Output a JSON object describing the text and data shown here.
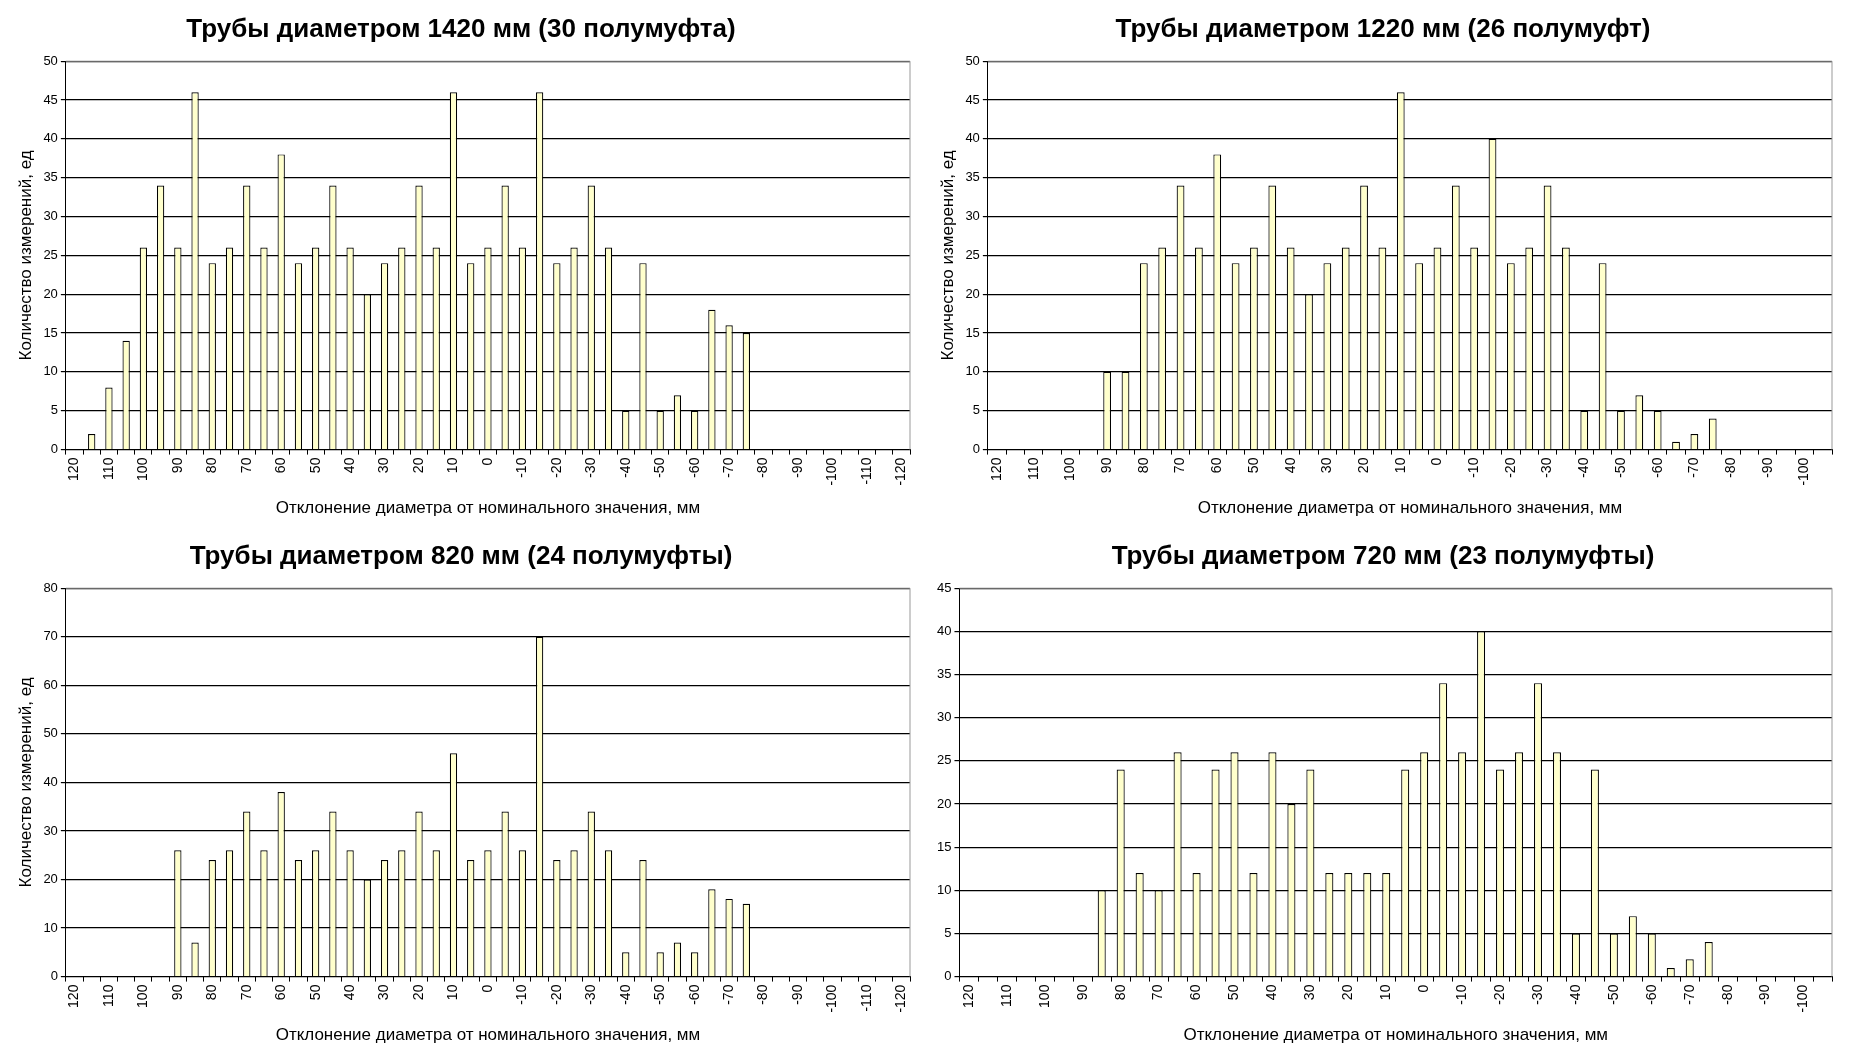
{
  "chart_data": [
    {
      "type": "bar",
      "title": "Трубы диаметром 1420 мм (30 полумуфта)",
      "xlabel": "Отклонение диаметра от номинального значения, мм",
      "ylabel": "Количество измерений, ед",
      "categories": [
        "120",
        null,
        "110",
        null,
        "100",
        null,
        "90",
        null,
        "80",
        null,
        "70",
        null,
        "60",
        null,
        "50",
        null,
        "40",
        null,
        "30",
        null,
        "20",
        null,
        "10",
        null,
        "0",
        null,
        "-10",
        null,
        "-20",
        null,
        "-30",
        null,
        "-40",
        null,
        "-50",
        null,
        "-60",
        null,
        "-70",
        null,
        "-80",
        null,
        "-90",
        null,
        "-100",
        null,
        "-110",
        null,
        "-120"
      ],
      "values": [
        0,
        2,
        8,
        14,
        26,
        34,
        26,
        46,
        24,
        26,
        34,
        26,
        38,
        24,
        26,
        34,
        26,
        20,
        24,
        26,
        34,
        26,
        46,
        24,
        26,
        34,
        26,
        46,
        24,
        26,
        34,
        26,
        5,
        24,
        5,
        7,
        5,
        18,
        16,
        15,
        0,
        0,
        0,
        0,
        0,
        0,
        0,
        0,
        0
      ],
      "color": "#ffffcc",
      "ylim": [
        0,
        50
      ],
      "yticks": [
        0,
        5,
        10,
        15,
        20,
        25,
        30,
        35,
        40,
        45,
        50
      ],
      "grid": "y",
      "legend": false
    },
    {
      "type": "bar",
      "title": "Трубы диаметром 1220 мм (26 полумуфт)",
      "xlabel": "Отклонение диаметра от номинального значения, мм",
      "ylabel": "Количество измерений, ед",
      "categories": [
        "120",
        null,
        "110",
        null,
        "100",
        null,
        "90",
        null,
        "80",
        null,
        "70",
        null,
        "60",
        null,
        "50",
        null,
        "40",
        null,
        "30",
        null,
        "20",
        null,
        "10",
        null,
        "0",
        null,
        "-10",
        null,
        "-20",
        null,
        "-30",
        null,
        "-40",
        null,
        "-50",
        null,
        "-60",
        null,
        "-70",
        null,
        "-80",
        null,
        "-90",
        null,
        "-100",
        null
      ],
      "values": [
        0,
        0,
        0,
        0,
        0,
        0,
        10,
        10,
        24,
        26,
        34,
        26,
        38,
        24,
        26,
        34,
        26,
        20,
        24,
        26,
        34,
        26,
        46,
        24,
        26,
        34,
        26,
        40,
        24,
        26,
        34,
        26,
        5,
        24,
        5,
        7,
        5,
        1,
        2,
        4,
        0,
        0,
        0,
        0,
        0,
        0
      ],
      "color": "#ffffcc",
      "ylim": [
        0,
        50
      ],
      "yticks": [
        0,
        5,
        10,
        15,
        20,
        25,
        30,
        35,
        40,
        45,
        50
      ],
      "grid": "y",
      "legend": false
    },
    {
      "type": "bar",
      "title": "Трубы диаметром 820 мм (24 полумуфты)",
      "xlabel": "Отклонение диаметра от номинального значения, мм",
      "ylabel": "Количество измерений, ед",
      "categories": [
        "120",
        null,
        "110",
        null,
        "100",
        null,
        "90",
        null,
        "80",
        null,
        "70",
        null,
        "60",
        null,
        "50",
        null,
        "40",
        null,
        "30",
        null,
        "20",
        null,
        "10",
        null,
        "0",
        null,
        "-10",
        null,
        "-20",
        null,
        "-30",
        null,
        "-40",
        null,
        "-50",
        null,
        "-60",
        null,
        "-70",
        null,
        "-80",
        null,
        "-90",
        null,
        "-100",
        null,
        "-110",
        null,
        "-120"
      ],
      "values": [
        0,
        0,
        0,
        0,
        0,
        0,
        26,
        7,
        24,
        26,
        34,
        26,
        38,
        24,
        26,
        34,
        26,
        20,
        24,
        26,
        34,
        26,
        46,
        24,
        26,
        34,
        26,
        70,
        24,
        26,
        34,
        26,
        5,
        24,
        5,
        7,
        5,
        18,
        16,
        15,
        0,
        0,
        0,
        0,
        0,
        0,
        0,
        0,
        0
      ],
      "color": "#ffffcc",
      "ylim": [
        0,
        80
      ],
      "yticks": [
        0,
        10,
        20,
        30,
        40,
        50,
        60,
        70,
        80
      ],
      "grid": "y",
      "legend": false
    },
    {
      "type": "bar",
      "title": "Трубы диаметром 720 мм (23 полумуфты)",
      "xlabel": "Отклонение диаметра от номинального значения, мм",
      "categories": [
        "120",
        null,
        "110",
        null,
        "100",
        null,
        "90",
        null,
        "80",
        null,
        "70",
        null,
        "60",
        null,
        "50",
        null,
        "40",
        null,
        "30",
        null,
        "20",
        null,
        "10",
        null,
        "0",
        null,
        "-10",
        null,
        "-20",
        null,
        "-30",
        null,
        "-40",
        null,
        "-50",
        null,
        "-60",
        null,
        "-70",
        null,
        "-80",
        null,
        "-90",
        null,
        "-100",
        null
      ],
      "values": [
        0,
        0,
        0,
        0,
        0,
        0,
        0,
        10,
        24,
        12,
        10,
        26,
        12,
        24,
        26,
        12,
        26,
        20,
        24,
        12,
        12,
        12,
        12,
        24,
        26,
        34,
        26,
        40,
        24,
        26,
        34,
        26,
        5,
        24,
        5,
        7,
        5,
        1,
        2,
        4,
        0,
        0,
        0,
        0,
        0,
        0
      ],
      "color": "#ffffcc",
      "ylim": [
        0,
        45
      ],
      "yticks": [
        0,
        5,
        10,
        15,
        20,
        25,
        30,
        35,
        40,
        45
      ],
      "grid": "y",
      "legend": false
    }
  ]
}
